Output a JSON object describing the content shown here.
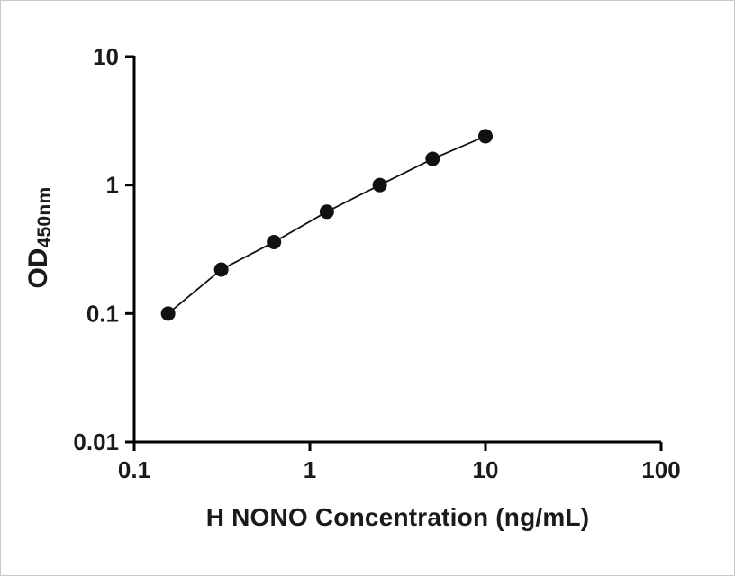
{
  "chart_data": {
    "type": "line",
    "title": "",
    "xlabel": "H NONO Concentration (ng/mL)",
    "ylabel": "OD450nm",
    "ylabel_main": "OD",
    "ylabel_sub": "450nm",
    "xscale": "log",
    "yscale": "log",
    "xlim": [
      0.1,
      100
    ],
    "ylim": [
      0.01,
      10
    ],
    "x_ticks": [
      0.1,
      1,
      10,
      100
    ],
    "x_tick_labels": [
      "0.1",
      "1",
      "10",
      "100"
    ],
    "y_ticks": [
      0.01,
      0.1,
      1,
      10
    ],
    "y_tick_labels": [
      "0.01",
      "0.1",
      "1",
      "10"
    ],
    "x": [
      0.156,
      0.313,
      0.625,
      1.25,
      2.5,
      5,
      10
    ],
    "y": [
      0.1,
      0.22,
      0.36,
      0.62,
      1.0,
      1.6,
      2.4
    ],
    "grid": false,
    "legend": "none",
    "marker": "circle",
    "marker_radius": 8,
    "marker_color": "#111111",
    "line_color": "#111111",
    "axis_color": "#000000"
  }
}
